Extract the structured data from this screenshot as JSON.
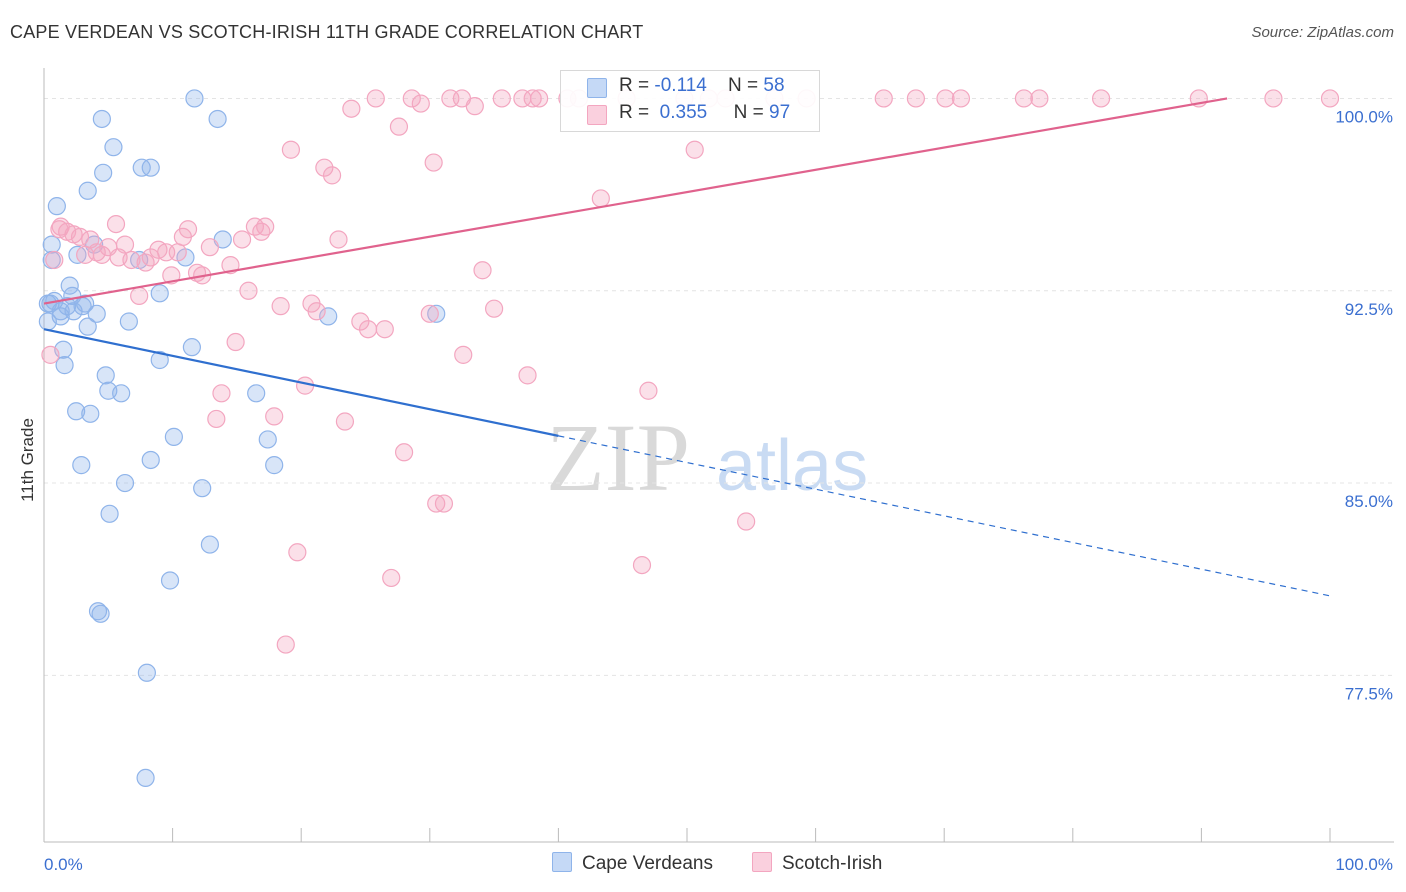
{
  "chart_data": {
    "type": "scatter",
    "title": "CAPE VERDEAN VS SCOTCH-IRISH 11TH GRADE CORRELATION CHART",
    "source": "Source: ZipAtlas.com",
    "ylabel": "11th Grade",
    "xlabel": "",
    "xlim": [
      0,
      100
    ],
    "ylim": [
      71,
      101.5
    ],
    "x_tick_labels": [
      "0.0%",
      "100.0%"
    ],
    "y_ticks": [
      {
        "value": 100,
        "label": "100.0%"
      },
      {
        "value": 92.5,
        "label": "92.5%"
      },
      {
        "value": 85,
        "label": "85.0%"
      },
      {
        "value": 77.5,
        "label": "77.5%"
      }
    ],
    "watermark": {
      "part1": "ZIP",
      "part2": "atlas"
    },
    "legend": {
      "r_label": "R =",
      "n_label": "N =",
      "rows": [
        {
          "r": "-0.114",
          "n": "58"
        },
        {
          "r": "0.355",
          "n": "97"
        }
      ]
    },
    "series": [
      {
        "name": "Cape Verdeans",
        "color": "#8fb4ea",
        "line_color": "#2f6fcf",
        "trend": {
          "x0": 0,
          "y0": 91.0,
          "x1": 100,
          "y1": 80.6,
          "solid_until": 40
        },
        "points": [
          [
            0.3,
            92.0
          ],
          [
            0.3,
            91.3
          ],
          [
            0.6,
            93.7
          ],
          [
            0.6,
            94.3
          ],
          [
            0.8,
            92.1
          ],
          [
            1.0,
            95.8
          ],
          [
            1.3,
            91.5
          ],
          [
            1.3,
            91.7
          ],
          [
            1.5,
            90.2
          ],
          [
            1.6,
            89.6
          ],
          [
            2.0,
            92.7
          ],
          [
            2.2,
            92.3
          ],
          [
            2.3,
            91.7
          ],
          [
            2.5,
            87.8
          ],
          [
            2.6,
            93.9
          ],
          [
            2.9,
            85.7
          ],
          [
            3.0,
            91.9
          ],
          [
            3.2,
            92.0
          ],
          [
            3.4,
            96.4
          ],
          [
            3.4,
            91.1
          ],
          [
            3.6,
            87.7
          ],
          [
            3.9,
            94.3
          ],
          [
            4.1,
            91.6
          ],
          [
            4.2,
            80.0
          ],
          [
            4.4,
            79.9
          ],
          [
            4.5,
            99.2
          ],
          [
            4.6,
            97.1
          ],
          [
            4.8,
            89.2
          ],
          [
            5.0,
            88.6
          ],
          [
            5.1,
            83.8
          ],
          [
            5.4,
            98.1
          ],
          [
            6.0,
            88.5
          ],
          [
            6.3,
            85.0
          ],
          [
            6.6,
            91.3
          ],
          [
            7.4,
            93.7
          ],
          [
            7.6,
            97.3
          ],
          [
            8.0,
            77.6
          ],
          [
            8.3,
            97.3
          ],
          [
            8.3,
            85.9
          ],
          [
            9.0,
            89.8
          ],
          [
            9.0,
            92.4
          ],
          [
            9.8,
            81.2
          ],
          [
            10.1,
            86.8
          ],
          [
            11.0,
            93.8
          ],
          [
            11.5,
            90.3
          ],
          [
            11.7,
            100.0
          ],
          [
            12.3,
            84.8
          ],
          [
            12.9,
            82.6
          ],
          [
            13.5,
            99.2
          ],
          [
            13.9,
            94.5
          ],
          [
            16.5,
            88.5
          ],
          [
            17.4,
            86.7
          ],
          [
            17.9,
            85.7
          ],
          [
            22.1,
            91.5
          ],
          [
            7.9,
            73.5
          ],
          [
            30.5,
            91.6
          ],
          [
            0.5,
            92.0
          ],
          [
            1.8,
            91.9
          ]
        ]
      },
      {
        "name": "Scotch-Irish",
        "color": "#f3a6c0",
        "line_color": "#e0628d",
        "trend": {
          "x0": 0,
          "y0": 92.0,
          "x1": 92,
          "y1": 100.0,
          "solid_until": 92
        },
        "points": [
          [
            0.5,
            90.0
          ],
          [
            0.8,
            93.7
          ],
          [
            1.2,
            94.9
          ],
          [
            1.8,
            94.8
          ],
          [
            2.3,
            94.7
          ],
          [
            2.8,
            94.6
          ],
          [
            3.2,
            93.9
          ],
          [
            3.6,
            94.5
          ],
          [
            4.1,
            94.0
          ],
          [
            4.5,
            93.9
          ],
          [
            5.0,
            94.2
          ],
          [
            5.6,
            95.1
          ],
          [
            5.8,
            93.8
          ],
          [
            6.3,
            94.3
          ],
          [
            6.8,
            93.7
          ],
          [
            7.4,
            92.3
          ],
          [
            7.9,
            93.6
          ],
          [
            8.3,
            93.8
          ],
          [
            8.9,
            94.1
          ],
          [
            9.5,
            94.0
          ],
          [
            9.9,
            93.1
          ],
          [
            10.4,
            94.0
          ],
          [
            10.8,
            94.6
          ],
          [
            11.2,
            94.9
          ],
          [
            11.9,
            93.2
          ],
          [
            12.3,
            93.1
          ],
          [
            12.9,
            94.2
          ],
          [
            13.4,
            87.5
          ],
          [
            13.8,
            88.5
          ],
          [
            14.5,
            93.5
          ],
          [
            14.9,
            90.5
          ],
          [
            15.4,
            94.5
          ],
          [
            15.9,
            92.5
          ],
          [
            16.4,
            95.0
          ],
          [
            16.9,
            94.8
          ],
          [
            17.2,
            95.0
          ],
          [
            17.9,
            87.6
          ],
          [
            18.4,
            91.9
          ],
          [
            18.8,
            78.7
          ],
          [
            19.2,
            98.0
          ],
          [
            19.7,
            82.3
          ],
          [
            20.3,
            88.8
          ],
          [
            20.8,
            92.0
          ],
          [
            21.2,
            91.7
          ],
          [
            21.8,
            97.3
          ],
          [
            22.4,
            97.0
          ],
          [
            22.9,
            94.5
          ],
          [
            23.4,
            87.4
          ],
          [
            23.9,
            99.6
          ],
          [
            24.6,
            91.3
          ],
          [
            25.2,
            91.0
          ],
          [
            25.8,
            100.0
          ],
          [
            26.5,
            91.0
          ],
          [
            27.0,
            81.3
          ],
          [
            27.6,
            98.9
          ],
          [
            28.0,
            86.2
          ],
          [
            28.6,
            100.0
          ],
          [
            29.3,
            99.8
          ],
          [
            30.0,
            91.6
          ],
          [
            30.3,
            97.5
          ],
          [
            30.5,
            84.2
          ],
          [
            31.1,
            84.2
          ],
          [
            31.6,
            100.0
          ],
          [
            32.5,
            100.0
          ],
          [
            32.6,
            90.0
          ],
          [
            33.5,
            99.7
          ],
          [
            34.1,
            93.3
          ],
          [
            35.0,
            91.8
          ],
          [
            35.6,
            100.0
          ],
          [
            37.2,
            100.0
          ],
          [
            37.6,
            89.2
          ],
          [
            38.0,
            100.0
          ],
          [
            38.5,
            100.0
          ],
          [
            40.7,
            100.0
          ],
          [
            41.6,
            100.0
          ],
          [
            43.3,
            96.1
          ],
          [
            45.3,
            100.0
          ],
          [
            46.5,
            81.8
          ],
          [
            47.0,
            88.6
          ],
          [
            49.8,
            100.0
          ],
          [
            50.6,
            98.0
          ],
          [
            51.7,
            100.0
          ],
          [
            53.0,
            100.0
          ],
          [
            54.6,
            83.5
          ],
          [
            56.8,
            100.0
          ],
          [
            59.3,
            100.0
          ],
          [
            65.3,
            100.0
          ],
          [
            67.8,
            100.0
          ],
          [
            70.1,
            100.0
          ],
          [
            71.3,
            100.0
          ],
          [
            76.2,
            100.0
          ],
          [
            77.4,
            100.0
          ],
          [
            82.2,
            100.0
          ],
          [
            89.8,
            100.0
          ],
          [
            95.6,
            100.0
          ],
          [
            100.0,
            100.0
          ],
          [
            1.3,
            95.0
          ]
        ]
      }
    ]
  }
}
